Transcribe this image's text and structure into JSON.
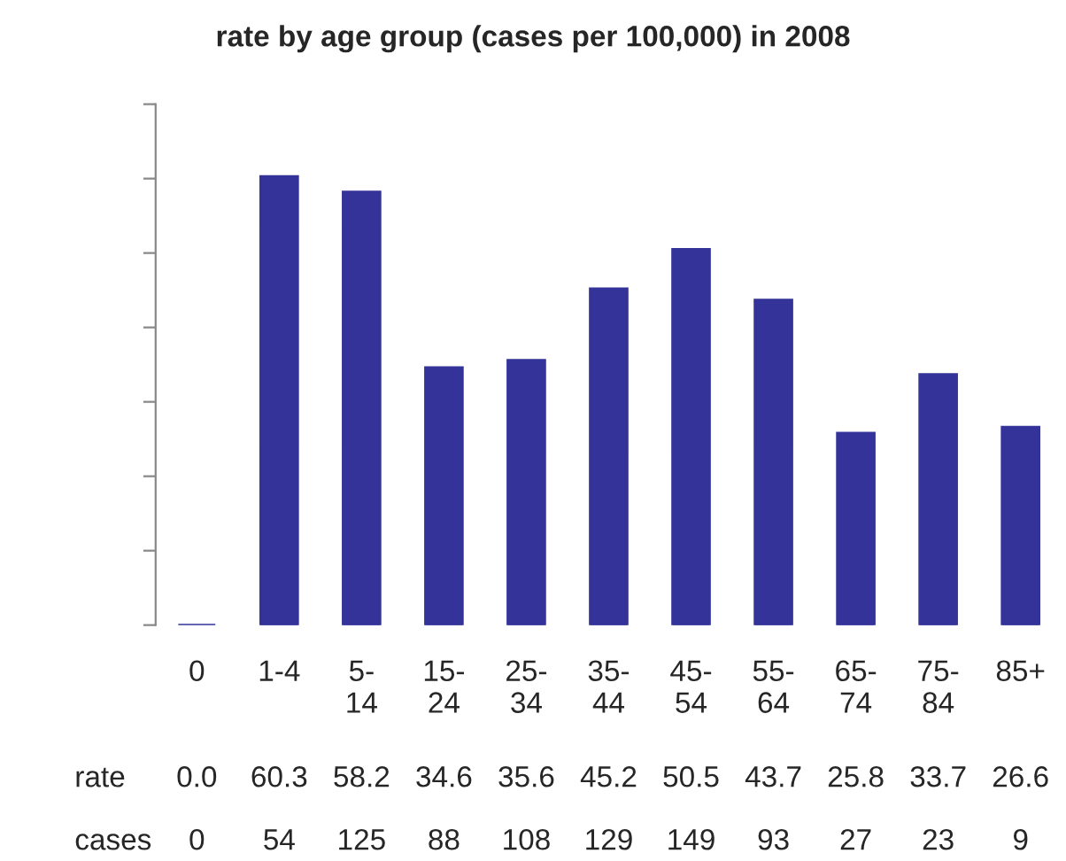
{
  "chart_data": {
    "type": "bar",
    "title": "rate by age group (cases per 100,000) in 2008",
    "categories": [
      "0",
      "1-4",
      "5-\n14",
      "15-\n24",
      "25-\n34",
      "35-\n44",
      "45-\n54",
      "55-\n64",
      "65-\n74",
      "75-\n84",
      "85+"
    ],
    "series": [
      {
        "name": "rate",
        "color": "#333399",
        "values": [
          0.0,
          60.3,
          58.2,
          34.6,
          35.6,
          45.2,
          50.5,
          43.7,
          25.8,
          33.7,
          26.6
        ],
        "value_labels": [
          "0.0",
          "60.3",
          "58.2",
          "34.6",
          "35.6",
          "45.2",
          "50.5",
          "43.7",
          "25.8",
          "33.7",
          "26.6"
        ]
      }
    ],
    "annotations": [
      "cases",
      "0",
      "54",
      "125",
      "88",
      "108",
      "129",
      "149",
      "93",
      "27",
      "23",
      "9"
    ],
    "ylim": [
      0,
      70
    ],
    "yticks": [
      {
        "value": 0,
        "label": null
      },
      {
        "value": 10,
        "label": null
      },
      {
        "value": 20,
        "label": null
      },
      {
        "value": 30,
        "label": null
      },
      {
        "value": 40,
        "label": null
      },
      {
        "value": 50,
        "label": null
      },
      {
        "value": 60,
        "label": null
      },
      {
        "value": 70,
        "label": null
      }
    ],
    "tick_labels": "x",
    "grid": false,
    "legend": false
  }
}
